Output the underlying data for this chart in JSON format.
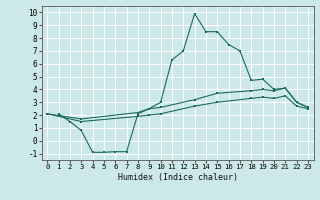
{
  "xlabel": "Humidex (Indice chaleur)",
  "xlim": [
    -0.5,
    23.5
  ],
  "ylim": [
    -1.5,
    10.5
  ],
  "xticks": [
    0,
    1,
    2,
    3,
    4,
    5,
    6,
    7,
    8,
    9,
    10,
    11,
    12,
    13,
    14,
    15,
    16,
    17,
    18,
    19,
    20,
    21,
    22,
    23
  ],
  "yticks": [
    -1,
    0,
    1,
    2,
    3,
    4,
    5,
    6,
    7,
    8,
    9,
    10
  ],
  "background_color": "#cce8e8",
  "grid_color": "#ffffff",
  "line_color": "#1a6b5a",
  "line1_x": [
    1,
    2,
    3,
    4,
    5,
    6,
    7,
    8,
    9,
    10,
    11,
    12,
    13,
    14,
    15,
    16,
    17,
    18,
    19,
    20,
    21,
    22,
    23
  ],
  "line1_y": [
    2.1,
    1.5,
    0.8,
    -0.9,
    -0.9,
    -0.85,
    -0.85,
    2.1,
    2.5,
    3.0,
    6.3,
    7.0,
    9.9,
    8.5,
    8.5,
    7.5,
    7.0,
    4.7,
    4.8,
    4.0,
    4.1,
    3.0,
    2.6
  ],
  "line2_x": [
    0,
    3,
    8,
    9,
    10,
    13,
    15,
    18,
    19,
    20,
    21,
    22,
    23
  ],
  "line2_y": [
    2.1,
    1.7,
    2.2,
    2.5,
    2.6,
    3.2,
    3.7,
    3.9,
    4.0,
    3.9,
    4.1,
    3.0,
    2.6
  ],
  "line3_x": [
    0,
    3,
    8,
    9,
    10,
    13,
    15,
    18,
    19,
    20,
    21,
    22,
    23
  ],
  "line3_y": [
    2.1,
    1.5,
    1.9,
    2.0,
    2.1,
    2.7,
    3.0,
    3.3,
    3.4,
    3.3,
    3.5,
    2.7,
    2.5
  ]
}
